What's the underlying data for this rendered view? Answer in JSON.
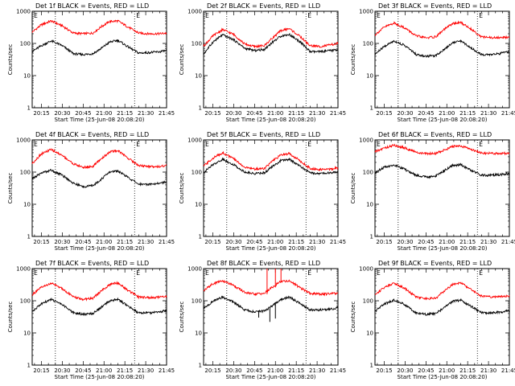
{
  "colors": {
    "events": "#000000",
    "lld": "#ff0000",
    "axes": "#000000",
    "background": "#ffffff"
  },
  "common": {
    "ylabel": "Counts/sec",
    "xlabel": "Start Time (25-Jun-08 20:08:20)",
    "x_tick_labels": [
      "20:15",
      "20:30",
      "20:45",
      "21:00",
      "21:15",
      "21:30",
      "21:45"
    ],
    "y_tick_labels": [
      "1",
      "10",
      "100",
      "1000"
    ],
    "corner_marks": [
      "E",
      "E"
    ]
  },
  "chart_data": [
    {
      "type": "line",
      "title": "Det 1f BLACK = Events, RED = LLD",
      "x_unit": "minutes after 20:00",
      "xlim": [
        8.33,
        105
      ],
      "ylim": [
        1,
        1000
      ],
      "y_scale": "log",
      "dotted_vlines": [
        25,
        82
      ],
      "series": [
        {
          "name": "Events",
          "color": "#000000",
          "x": [
            8,
            15,
            22,
            30,
            38,
            45,
            52,
            58,
            64,
            70,
            78,
            85,
            92,
            100,
            105
          ],
          "values": [
            55,
            85,
            120,
            85,
            48,
            45,
            48,
            70,
            110,
            125,
            75,
            50,
            52,
            55,
            60
          ]
        },
        {
          "name": "LLD",
          "color": "#ff0000",
          "x": [
            8,
            15,
            22,
            30,
            38,
            45,
            52,
            58,
            64,
            70,
            78,
            85,
            92,
            100,
            105
          ],
          "values": [
            220,
            380,
            500,
            350,
            210,
            200,
            210,
            330,
            480,
            500,
            310,
            210,
            200,
            200,
            210
          ]
        }
      ]
    },
    {
      "type": "line",
      "title": "Det 2f BLACK = Events, RED = LLD",
      "x_unit": "minutes after 20:00",
      "xlim": [
        8.33,
        105
      ],
      "ylim": [
        1,
        1000
      ],
      "y_scale": "log",
      "dotted_vlines": [
        25,
        82
      ],
      "series": [
        {
          "name": "Events",
          "color": "#000000",
          "x": [
            8,
            15,
            22,
            30,
            38,
            45,
            52,
            58,
            64,
            70,
            78,
            85,
            92,
            100,
            105
          ],
          "values": [
            45,
            110,
            185,
            130,
            70,
            60,
            65,
            110,
            170,
            190,
            110,
            55,
            55,
            60,
            65
          ]
        },
        {
          "name": "LLD",
          "color": "#ff0000",
          "x": [
            8,
            15,
            22,
            30,
            38,
            45,
            52,
            58,
            64,
            70,
            78,
            85,
            92,
            100,
            105
          ],
          "values": [
            80,
            170,
            270,
            190,
            95,
            80,
            85,
            150,
            250,
            290,
            160,
            85,
            80,
            90,
            100
          ]
        }
      ]
    },
    {
      "type": "line",
      "title": "Det 3f BLACK = Events, RED = LLD",
      "x_unit": "minutes after 20:00",
      "xlim": [
        8.33,
        105
      ],
      "ylim": [
        1,
        1000
      ],
      "y_scale": "log",
      "dotted_vlines": [
        25,
        82
      ],
      "series": [
        {
          "name": "Events",
          "color": "#000000",
          "x": [
            8,
            15,
            22,
            30,
            38,
            45,
            52,
            58,
            64,
            70,
            78,
            85,
            92,
            100,
            105
          ],
          "values": [
            45,
            80,
            120,
            85,
            45,
            40,
            42,
            65,
            105,
            120,
            70,
            45,
            45,
            50,
            55
          ]
        },
        {
          "name": "LLD",
          "color": "#ff0000",
          "x": [
            8,
            15,
            22,
            30,
            38,
            45,
            52,
            58,
            64,
            70,
            78,
            85,
            92,
            100,
            105
          ],
          "values": [
            180,
            320,
            430,
            300,
            170,
            150,
            160,
            270,
            410,
            450,
            270,
            160,
            150,
            150,
            160
          ]
        }
      ]
    },
    {
      "type": "line",
      "title": "Det 4f BLACK = Events, RED = LLD",
      "x_unit": "minutes after 20:00",
      "xlim": [
        8.33,
        105
      ],
      "ylim": [
        1,
        1000
      ],
      "y_scale": "log",
      "dotted_vlines": [
        25,
        82
      ],
      "series": [
        {
          "name": "Events",
          "color": "#000000",
          "x": [
            8,
            15,
            22,
            30,
            38,
            45,
            52,
            58,
            64,
            70,
            78,
            85,
            92,
            100,
            105
          ],
          "values": [
            60,
            95,
            115,
            80,
            45,
            35,
            38,
            60,
            100,
            110,
            65,
            42,
            42,
            45,
            50
          ]
        },
        {
          "name": "LLD",
          "color": "#ff0000",
          "x": [
            8,
            15,
            22,
            30,
            38,
            45,
            52,
            58,
            64,
            70,
            78,
            85,
            92,
            100,
            105
          ],
          "values": [
            180,
            370,
            500,
            330,
            180,
            140,
            150,
            260,
            420,
            470,
            260,
            160,
            150,
            150,
            160
          ]
        }
      ]
    },
    {
      "type": "line",
      "title": "Det 5f BLACK = Events, RED = LLD",
      "x_unit": "minutes after 20:00",
      "xlim": [
        8.33,
        105
      ],
      "ylim": [
        1,
        1000
      ],
      "y_scale": "log",
      "dotted_vlines": [
        25,
        82
      ],
      "series": [
        {
          "name": "Events",
          "color": "#000000",
          "x": [
            8,
            15,
            22,
            30,
            38,
            45,
            52,
            58,
            64,
            70,
            78,
            85,
            92,
            100,
            105
          ],
          "values": [
            95,
            170,
            250,
            170,
            100,
            90,
            95,
            150,
            230,
            250,
            150,
            95,
            90,
            95,
            100
          ]
        },
        {
          "name": "LLD",
          "color": "#ff0000",
          "x": [
            8,
            15,
            22,
            30,
            38,
            45,
            52,
            58,
            64,
            70,
            78,
            85,
            92,
            100,
            105
          ],
          "values": [
            150,
            270,
            400,
            260,
            140,
            125,
            130,
            220,
            340,
            380,
            220,
            130,
            120,
            125,
            135
          ]
        }
      ]
    },
    {
      "type": "line",
      "title": "Det 6f BLACK = Events, RED = LLD",
      "x_unit": "minutes after 20:00",
      "xlim": [
        8.33,
        105
      ],
      "ylim": [
        1,
        1000
      ],
      "y_scale": "log",
      "dotted_vlines": [
        25,
        82
      ],
      "series": [
        {
          "name": "Events",
          "color": "#000000",
          "x": [
            8,
            15,
            22,
            30,
            38,
            45,
            52,
            58,
            64,
            70,
            78,
            85,
            92,
            100,
            105
          ],
          "values": [
            95,
            140,
            170,
            120,
            80,
            70,
            75,
            110,
            160,
            170,
            110,
            80,
            80,
            85,
            90
          ]
        },
        {
          "name": "LLD",
          "color": "#ff0000",
          "x": [
            8,
            15,
            22,
            30,
            38,
            45,
            52,
            58,
            64,
            70,
            78,
            85,
            92,
            100,
            105
          ],
          "values": [
            420,
            560,
            680,
            560,
            410,
            370,
            380,
            480,
            620,
            650,
            500,
            390,
            380,
            380,
            390
          ]
        }
      ]
    },
    {
      "type": "line",
      "title": "Det 7f BLACK = Events, RED = LLD",
      "x_unit": "minutes after 20:00",
      "xlim": [
        8.33,
        105
      ],
      "ylim": [
        1,
        1000
      ],
      "y_scale": "log",
      "dotted_vlines": [
        25,
        82
      ],
      "series": [
        {
          "name": "Events",
          "color": "#000000",
          "x": [
            8,
            15,
            22,
            30,
            38,
            45,
            52,
            58,
            64,
            70,
            78,
            85,
            92,
            100,
            105
          ],
          "values": [
            45,
            80,
            110,
            75,
            42,
            38,
            40,
            62,
            100,
            110,
            65,
            42,
            42,
            45,
            50
          ]
        },
        {
          "name": "LLD",
          "color": "#ff0000",
          "x": [
            8,
            15,
            22,
            30,
            38,
            45,
            52,
            58,
            64,
            70,
            78,
            85,
            92,
            100,
            105
          ],
          "values": [
            150,
            260,
            350,
            240,
            130,
            110,
            120,
            200,
            320,
            360,
            200,
            130,
            125,
            130,
            140
          ]
        }
      ]
    },
    {
      "type": "line",
      "title": "Det 8f BLACK = Events, RED = LLD",
      "x_unit": "minutes after 20:00",
      "xlim": [
        8.33,
        105
      ],
      "ylim": [
        1,
        1000
      ],
      "y_scale": "log",
      "dotted_vlines": [
        25,
        82
      ],
      "series": [
        {
          "name": "Events",
          "color": "#000000",
          "x": [
            8,
            15,
            22,
            30,
            38,
            45,
            52,
            58,
            64,
            70,
            78,
            85,
            92,
            100,
            105
          ],
          "values": [
            55,
            95,
            130,
            90,
            52,
            45,
            48,
            70,
            110,
            130,
            80,
            52,
            52,
            55,
            60
          ]
        },
        {
          "name": "LLD",
          "color": "#ff0000",
          "x": [
            8,
            15,
            22,
            30,
            38,
            45,
            52,
            58,
            64,
            70,
            78,
            85,
            92,
            100,
            105
          ],
          "values": [
            200,
            340,
            420,
            300,
            180,
            160,
            170,
            270,
            400,
            420,
            250,
            170,
            160,
            165,
            175
          ]
        }
      ],
      "spikes": [
        {
          "x": 54,
          "color": "#ff0000",
          "low": 160,
          "high": 1000
        },
        {
          "x": 60,
          "color": "#ff0000",
          "low": 260,
          "high": 1000
        },
        {
          "x": 64,
          "color": "#ff0000",
          "low": 380,
          "high": 1000
        },
        {
          "x": 56,
          "color": "#000000",
          "low": 22,
          "high": 60
        },
        {
          "x": 60,
          "color": "#000000",
          "low": 28,
          "high": 90
        },
        {
          "x": 48,
          "color": "#000000",
          "low": 30,
          "high": 50
        }
      ]
    },
    {
      "type": "line",
      "title": "Det 9f BLACK = Events, RED = LLD",
      "x_unit": "minutes after 20:00",
      "xlim": [
        8.33,
        105
      ],
      "ylim": [
        1,
        1000
      ],
      "y_scale": "log",
      "dotted_vlines": [
        25,
        82
      ],
      "series": [
        {
          "name": "Events",
          "color": "#000000",
          "x": [
            8,
            15,
            22,
            30,
            38,
            45,
            52,
            58,
            64,
            70,
            78,
            85,
            92,
            100,
            105
          ],
          "values": [
            45,
            78,
            105,
            75,
            42,
            38,
            40,
            60,
            95,
            105,
            65,
            42,
            42,
            45,
            50
          ]
        },
        {
          "name": "LLD",
          "color": "#ff0000",
          "x": [
            8,
            15,
            22,
            30,
            38,
            45,
            52,
            58,
            64,
            70,
            78,
            85,
            92,
            100,
            105
          ],
          "values": [
            150,
            260,
            360,
            240,
            130,
            115,
            120,
            200,
            320,
            370,
            210,
            140,
            130,
            135,
            145
          ]
        }
      ]
    }
  ]
}
